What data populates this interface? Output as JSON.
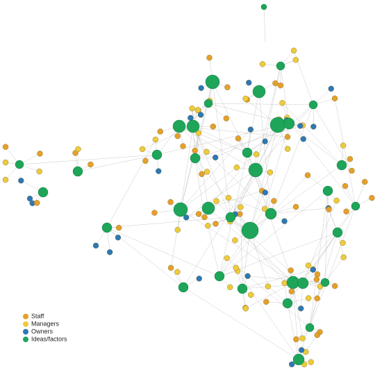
{
  "legend": {
    "items": [
      {
        "label": "Staff",
        "color": "#e6a02a"
      },
      {
        "label": "Managers",
        "color": "#eecb3a"
      },
      {
        "label": "Owners",
        "color": "#2d78b6"
      },
      {
        "label": "Ideas/factors",
        "color": "#1ea559"
      }
    ]
  }
}
